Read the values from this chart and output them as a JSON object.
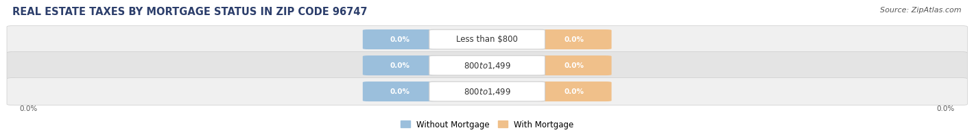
{
  "title": "REAL ESTATE TAXES BY MORTGAGE STATUS IN ZIP CODE 96747",
  "source": "Source: ZipAtlas.com",
  "categories": [
    "Less than $800",
    "$800 to $1,499",
    "$800 to $1,499"
  ],
  "without_mortgage": [
    0.0,
    0.0,
    0.0
  ],
  "with_mortgage": [
    0.0,
    0.0,
    0.0
  ],
  "without_mortgage_color": "#9bbfdc",
  "with_mortgage_color": "#f0c08a",
  "row_bg_colors": [
    "#f0f0f0",
    "#e4e4e4",
    "#f0f0f0"
  ],
  "title_fontsize": 10.5,
  "source_fontsize": 8,
  "label_fontsize": 7.5,
  "category_fontsize": 8.5,
  "legend_fontsize": 8.5,
  "left_label": "0.0%",
  "right_label": "0.0%"
}
